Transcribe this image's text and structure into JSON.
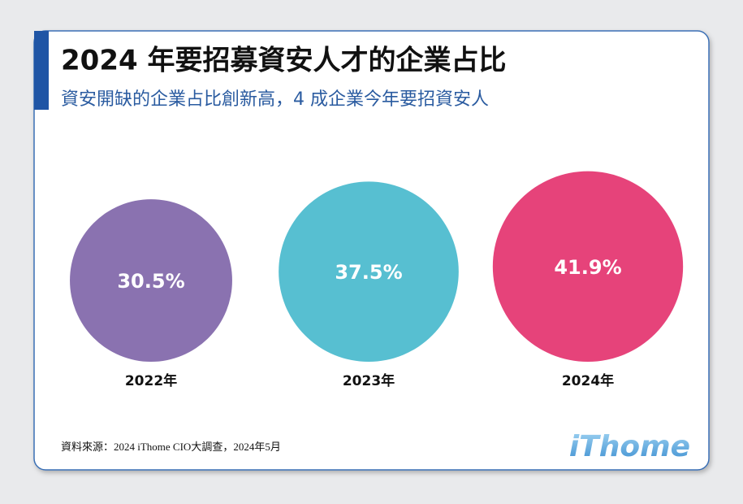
{
  "chart_data": {
    "type": "bubble",
    "title": "2024 年要招募資安人才的企業占比",
    "subtitle": "資安開缺的企業占比創新高，4 成企業今年要招資安人",
    "categories": [
      "2022年",
      "2023年",
      "2024年"
    ],
    "values": [
      30.5,
      37.5,
      41.9
    ],
    "value_labels": [
      "30.5%",
      "37.5%",
      "41.9%"
    ],
    "colors": [
      "#8a72b0",
      "#57bfd1",
      "#e6437a"
    ],
    "source": "資料來源：2024 iThome CIO大調查，2024年5月",
    "logo": "iThome"
  }
}
